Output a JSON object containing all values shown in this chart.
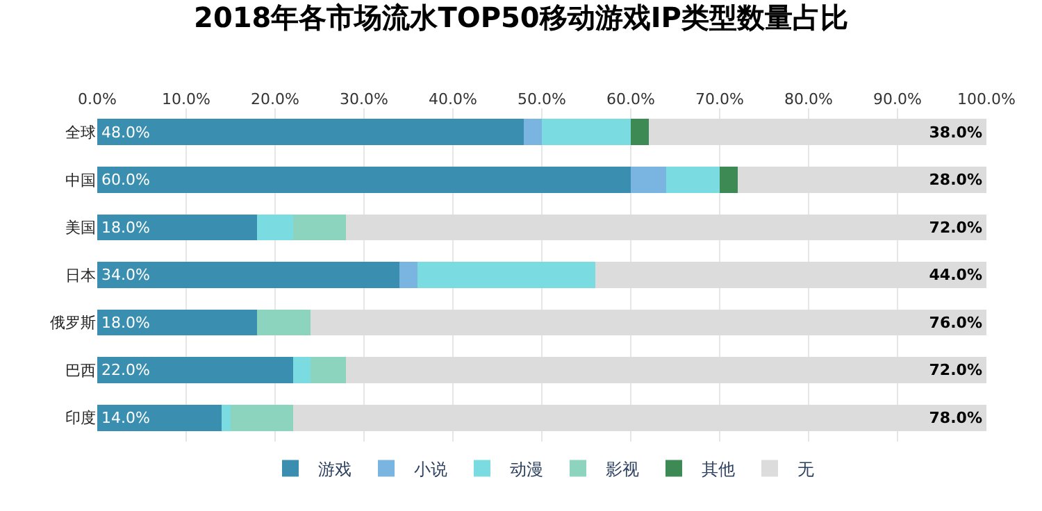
{
  "chart_data": {
    "type": "bar",
    "orientation": "horizontal",
    "stacked": true,
    "title": "2018年各市场流水TOP50移动游戏IP类型数量占比",
    "categories": [
      "全球",
      "中国",
      "美国",
      "日本",
      "俄罗斯",
      "巴西",
      "印度"
    ],
    "series": [
      {
        "name": "游戏",
        "color": "#3a8fb0",
        "values": [
          48,
          60,
          18,
          34,
          18,
          22,
          14
        ],
        "value_labels": [
          "48.0%",
          "60.0%",
          "18.0%",
          "34.0%",
          "18.0%",
          "22.0%",
          "14.0%"
        ]
      },
      {
        "name": "小说",
        "color": "#7ab4e0",
        "values": [
          2,
          4,
          0,
          2,
          0,
          0,
          0
        ]
      },
      {
        "name": "动漫",
        "color": "#7adbe0",
        "values": [
          10,
          6,
          4,
          20,
          0,
          2,
          1
        ]
      },
      {
        "name": "影视",
        "color": "#8dd4be",
        "values": [
          0,
          0,
          6,
          0,
          6,
          4,
          7
        ]
      },
      {
        "name": "其他",
        "color": "#3d8a55",
        "values": [
          2,
          2,
          0,
          0,
          0,
          0,
          0
        ]
      },
      {
        "name": "无",
        "color": "#dcdcdc",
        "values": [
          38,
          28,
          72,
          44,
          76,
          72,
          78
        ],
        "value_labels": [
          "38.0%",
          "28.0%",
          "72.0%",
          "44.0%",
          "76.0%",
          "72.0%",
          "78.0%"
        ]
      }
    ],
    "xlim": [
      0,
      100
    ],
    "xticks": [
      {
        "value": 0,
        "label": "0.0%"
      },
      {
        "value": 10,
        "label": "10.0%"
      },
      {
        "value": 20,
        "label": "20.0%"
      },
      {
        "value": 30,
        "label": "30.0%"
      },
      {
        "value": 40,
        "label": "40.0%"
      },
      {
        "value": 50,
        "label": "50.0%"
      },
      {
        "value": 60,
        "label": "60.0%"
      },
      {
        "value": 70,
        "label": "70.0%"
      },
      {
        "value": 80,
        "label": "80.0%"
      },
      {
        "value": 90,
        "label": "90.0%"
      },
      {
        "value": 100,
        "label": "100.0%"
      }
    ],
    "grid": "x",
    "legend": "bottom"
  }
}
